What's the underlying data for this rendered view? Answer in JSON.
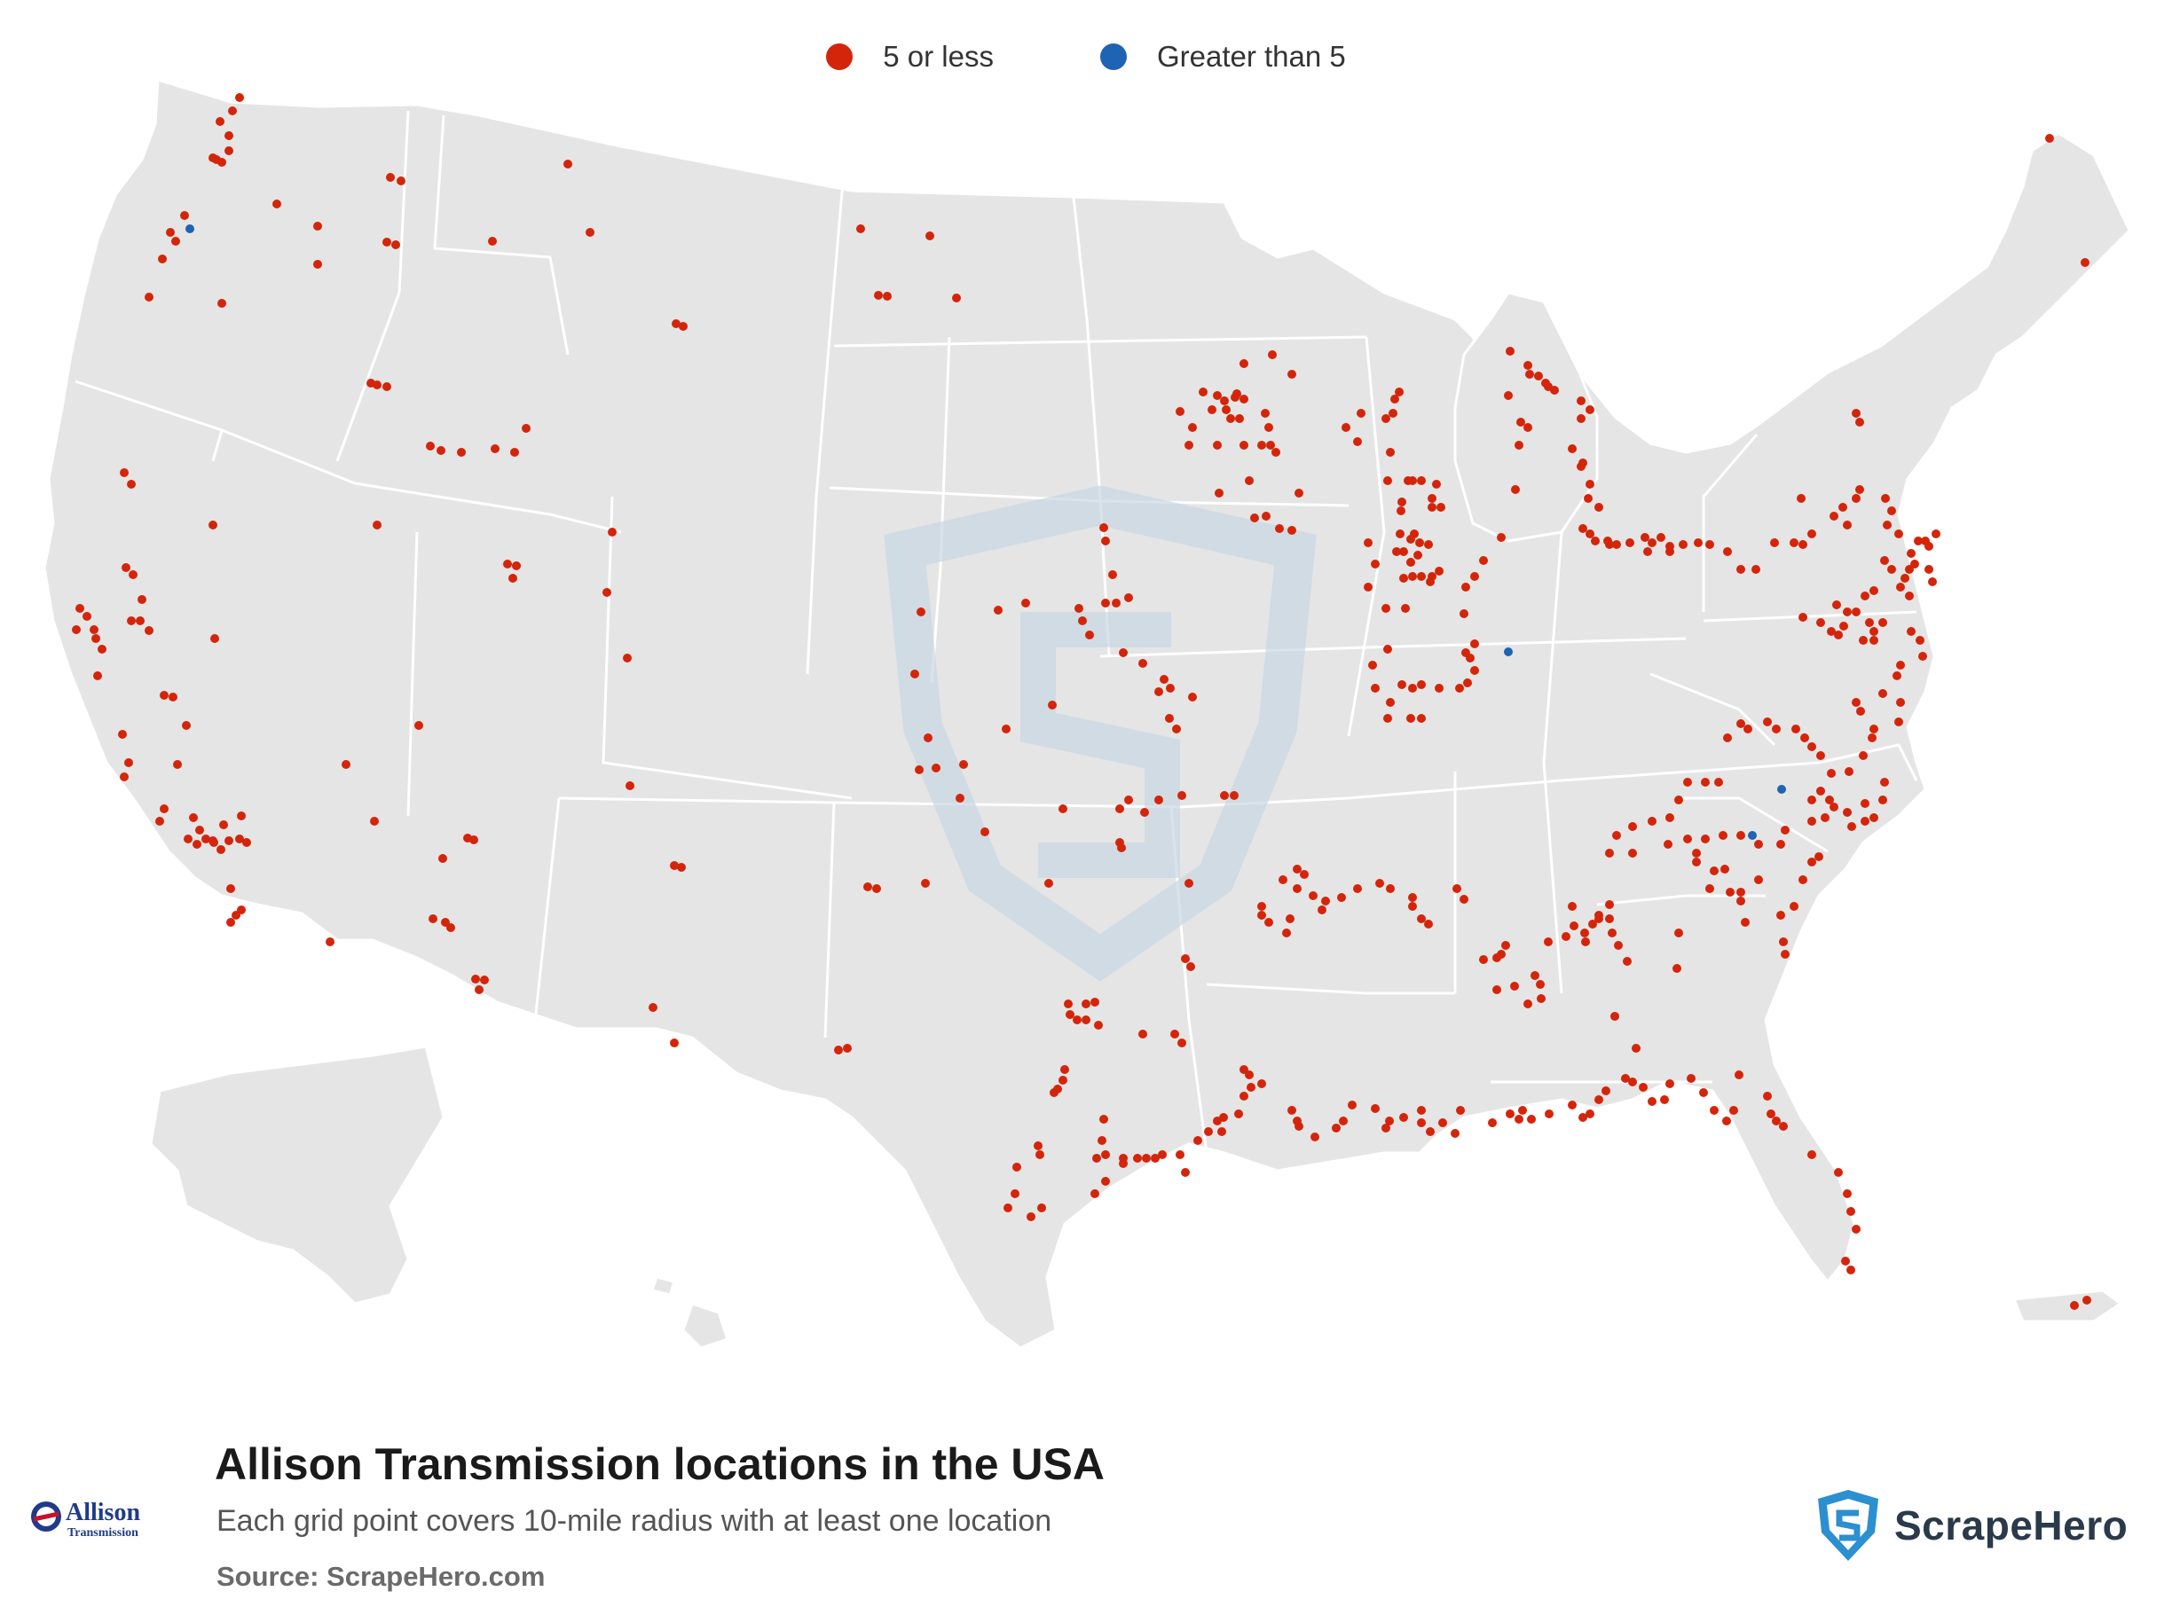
{
  "legend": {
    "items": [
      {
        "label": "5 or less",
        "color": "#d4250a"
      },
      {
        "label": "Greater than 5",
        "color": "#1f63b4"
      }
    ]
  },
  "map": {
    "land_color": "#e5e5e5",
    "border_color": "#ffffff",
    "watermark_color": "#c8d8e4"
  },
  "footer": {
    "title": "Allison Transmission locations in the USA",
    "subtitle": "Each grid point covers 10-mile radius with at least one location",
    "source": "Source: ScrapeHero.com",
    "client_logo_text": "Allison",
    "client_logo_subtext": "Transmission",
    "brand_name": "ScrapeHero"
  }
}
